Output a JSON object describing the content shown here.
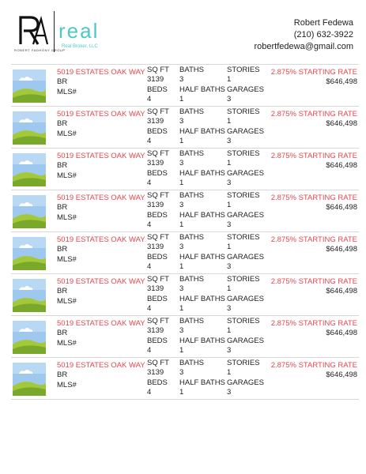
{
  "header": {
    "logo_caption": "ROBERT FADHONY GROUP",
    "brand_word": "real",
    "brand_sub": "Real Broker, LLC",
    "agent_name": "Robert Fedewa",
    "agent_phone": "(210) 632-3922",
    "agent_email": "robertfedewa@gmail.com"
  },
  "labels": {
    "br": "BR",
    "mls": "MLS#",
    "sqft": "SQ FT",
    "beds": "BEDS",
    "baths": "BATHS",
    "half_baths": "HALF BATHS",
    "stories": "STORIES",
    "garages": "GARAGES"
  },
  "listings": [
    {
      "address": "5019 ESTATES OAK WAY",
      "sqft": "3139",
      "beds": "4",
      "baths": "3",
      "half_baths": "1",
      "stories": "1",
      "garages": "3",
      "rate": "2.875% STARTING RATE",
      "price": "$646,498"
    },
    {
      "address": "5019 ESTATES OAK WAY",
      "sqft": "3139",
      "beds": "4",
      "baths": "3",
      "half_baths": "1",
      "stories": "1",
      "garages": "3",
      "rate": "2.875% STARTING RATE",
      "price": "$646,498"
    },
    {
      "address": "5019 ESTATES OAK WAY",
      "sqft": "3139",
      "beds": "4",
      "baths": "3",
      "half_baths": "1",
      "stories": "1",
      "garages": "3",
      "rate": "2.875% STARTING RATE",
      "price": "$646,498"
    },
    {
      "address": "5019 ESTATES OAK WAY",
      "sqft": "3139",
      "beds": "4",
      "baths": "3",
      "half_baths": "1",
      "stories": "1",
      "garages": "3",
      "rate": "2.875% STARTING RATE",
      "price": "$646,498"
    },
    {
      "address": "5019 ESTATES OAK WAY",
      "sqft": "3139",
      "beds": "4",
      "baths": "3",
      "half_baths": "1",
      "stories": "1",
      "garages": "3",
      "rate": "2.875% STARTING RATE",
      "price": "$646,498"
    },
    {
      "address": "5019 ESTATES OAK WAY",
      "sqft": "3139",
      "beds": "4",
      "baths": "3",
      "half_baths": "1",
      "stories": "1",
      "garages": "3",
      "rate": "2.875% STARTING RATE",
      "price": "$646,498"
    },
    {
      "address": "5019 ESTATES OAK WAY",
      "sqft": "3139",
      "beds": "4",
      "baths": "3",
      "half_baths": "1",
      "stories": "1",
      "garages": "3",
      "rate": "2.875% STARTING RATE",
      "price": "$646,498"
    },
    {
      "address": "5019 ESTATES OAK WAY",
      "sqft": "3139",
      "beds": "4",
      "baths": "3",
      "half_baths": "1",
      "stories": "1",
      "garages": "3",
      "rate": "2.875% STARTING RATE",
      "price": "$646,498"
    }
  ],
  "colors": {
    "accent_red": "#e4474e",
    "brand_teal": "#4fc7c8",
    "sky": "#9ec8ee",
    "grass_light": "#a3c93a",
    "grass_dark": "#7aa82a"
  },
  "icons": {
    "thumbnail": "landscape-placeholder-icon",
    "logo": "ra-monogram-logo"
  }
}
